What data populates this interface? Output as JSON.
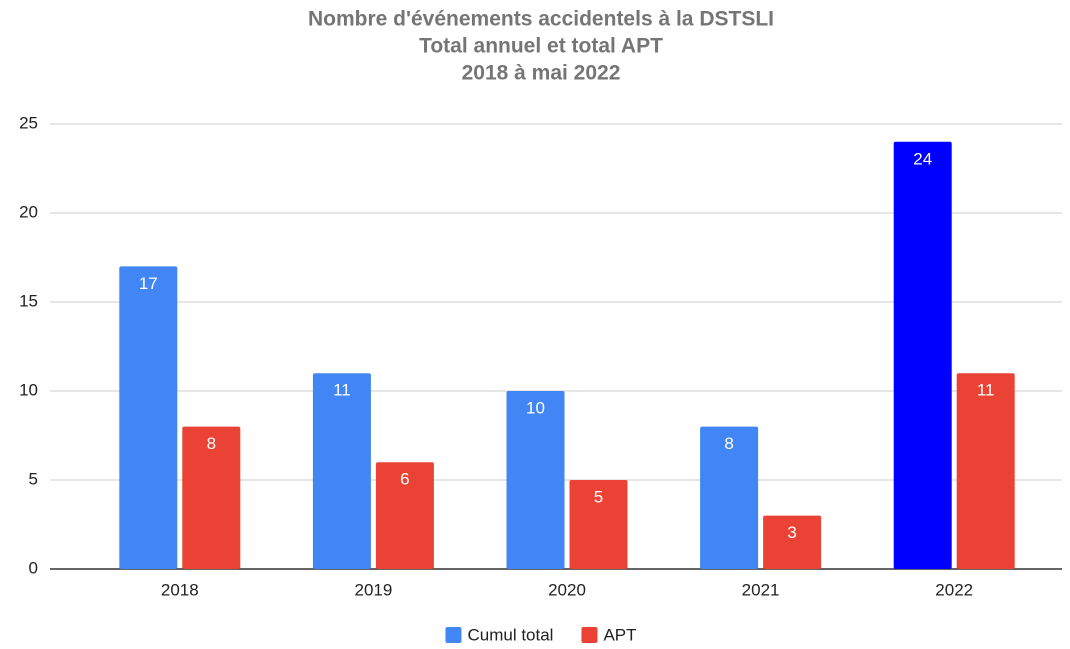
{
  "chart_data": {
    "type": "bar",
    "title": [
      "Nombre d'événements accidentels à la DSTSLI",
      "Total annuel et total APT",
      "2018 à mai 2022"
    ],
    "categories": [
      "2018",
      "2019",
      "2020",
      "2021",
      "2022"
    ],
    "series": [
      {
        "name": "Cumul total",
        "color": "#4285f4",
        "colors": [
          "#4285f4",
          "#4285f4",
          "#4285f4",
          "#4285f4",
          "#0000ff"
        ],
        "values": [
          17,
          11,
          10,
          8,
          24
        ]
      },
      {
        "name": "APT",
        "color": "#ea4335",
        "values": [
          8,
          6,
          5,
          3,
          11
        ]
      }
    ],
    "ylim": [
      0,
      25
    ],
    "yticks": [
      0,
      5,
      10,
      15,
      20,
      25
    ],
    "grid": true,
    "legend": "bottom"
  }
}
